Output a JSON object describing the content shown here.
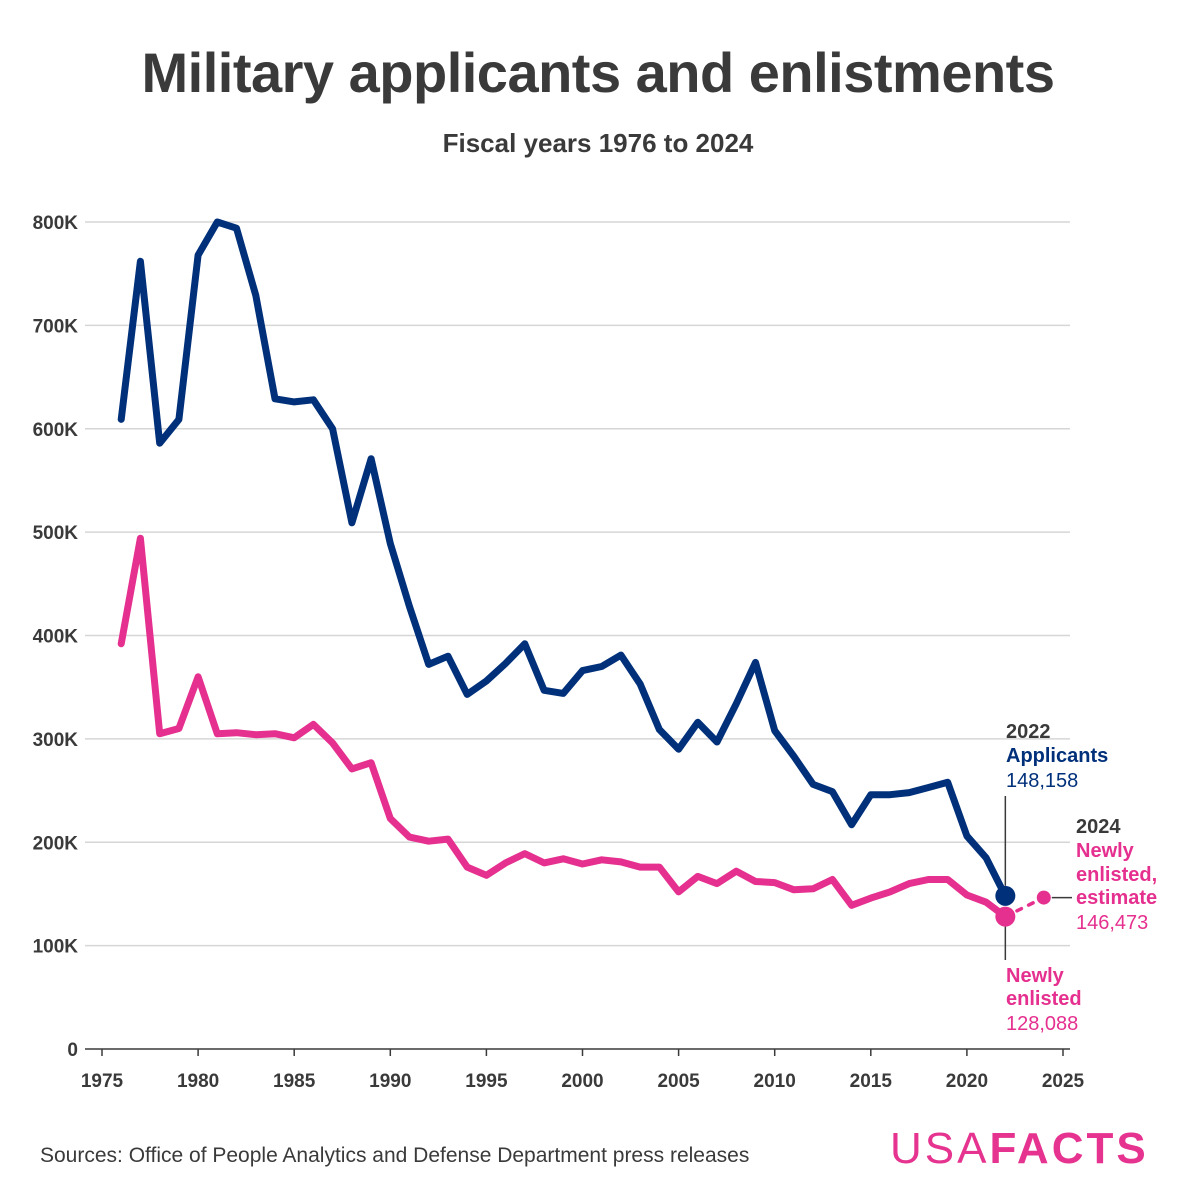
{
  "chart_data": {
    "type": "line",
    "title": "Military applicants and enlistments",
    "subtitle": "Fiscal years 1976 to 2024",
    "xlabel": "",
    "ylabel": "",
    "xlim": [
      1975,
      2025
    ],
    "ylim": [
      0,
      800000
    ],
    "x_ticks": [
      "1975",
      "1980",
      "1985",
      "1990",
      "1995",
      "2000",
      "2005",
      "2010",
      "2015",
      "2020",
      "2025"
    ],
    "y_ticks": [
      "0",
      "100K",
      "200K",
      "300K",
      "400K",
      "500K",
      "600K",
      "700K",
      "800K"
    ],
    "grid": true,
    "series": [
      {
        "name": "Applicants",
        "color": "#00307a",
        "x": [
          1976,
          1977,
          1978,
          1979,
          1980,
          1981,
          1982,
          1983,
          1984,
          1985,
          1986,
          1987,
          1988,
          1989,
          1990,
          1991,
          1992,
          1993,
          1994,
          1995,
          1996,
          1997,
          1998,
          1999,
          2000,
          2001,
          2002,
          2003,
          2004,
          2005,
          2006,
          2007,
          2008,
          2009,
          2010,
          2011,
          2012,
          2013,
          2014,
          2015,
          2016,
          2017,
          2018,
          2019,
          2020,
          2021,
          2022
        ],
        "values": [
          609000,
          762000,
          586000,
          609000,
          768000,
          800000,
          794000,
          729000,
          629000,
          626000,
          628000,
          600000,
          509000,
          571000,
          489000,
          428000,
          372000,
          380000,
          343000,
          356000,
          373000,
          392000,
          347000,
          344000,
          366000,
          370000,
          381000,
          353000,
          309000,
          290000,
          316000,
          297000,
          334000,
          374000,
          308000,
          283000,
          256000,
          249000,
          217000,
          246000,
          246000,
          248000,
          253000,
          258000,
          206000,
          185000,
          148158
        ]
      },
      {
        "name": "Newly enlisted",
        "color": "#e5308f",
        "x": [
          1976,
          1977,
          1978,
          1979,
          1980,
          1981,
          1982,
          1983,
          1984,
          1985,
          1986,
          1987,
          1988,
          1989,
          1990,
          1991,
          1992,
          1993,
          1994,
          1995,
          1996,
          1997,
          1998,
          1999,
          2000,
          2001,
          2002,
          2003,
          2004,
          2005,
          2006,
          2007,
          2008,
          2009,
          2010,
          2011,
          2012,
          2013,
          2014,
          2015,
          2016,
          2017,
          2018,
          2019,
          2020,
          2021,
          2022
        ],
        "values": [
          392000,
          494000,
          305000,
          310000,
          360000,
          305000,
          306000,
          304000,
          305000,
          301000,
          314000,
          296000,
          271000,
          277000,
          223000,
          205000,
          201000,
          203000,
          176000,
          168000,
          180000,
          189000,
          180000,
          184000,
          179000,
          183000,
          181000,
          176000,
          176000,
          152000,
          167000,
          160000,
          172000,
          162000,
          161000,
          154000,
          155000,
          164000,
          139000,
          146000,
          152000,
          160000,
          164000,
          164000,
          149000,
          142000,
          128088
        ]
      },
      {
        "name": "Newly enlisted, estimate",
        "color": "#e5308f",
        "dashed": true,
        "x": [
          2022,
          2024
        ],
        "values": [
          128088,
          146473
        ]
      }
    ],
    "annotations": {
      "applicants": {
        "year": "2022",
        "label": "Applicants",
        "value": "148,158"
      },
      "enlisted": {
        "label_line1": "Newly",
        "label_line2": "enlisted",
        "value": "128,088"
      },
      "estimate": {
        "year": "2024",
        "label_line1": "Newly",
        "label_line2": "enlisted,",
        "label_line3": "estimate",
        "value": "146,473"
      }
    }
  },
  "footer": {
    "source": "Sources: Office of People Analytics and Defense Department press releases",
    "logo_part1": "USA",
    "logo_part2": "FACTS"
  }
}
